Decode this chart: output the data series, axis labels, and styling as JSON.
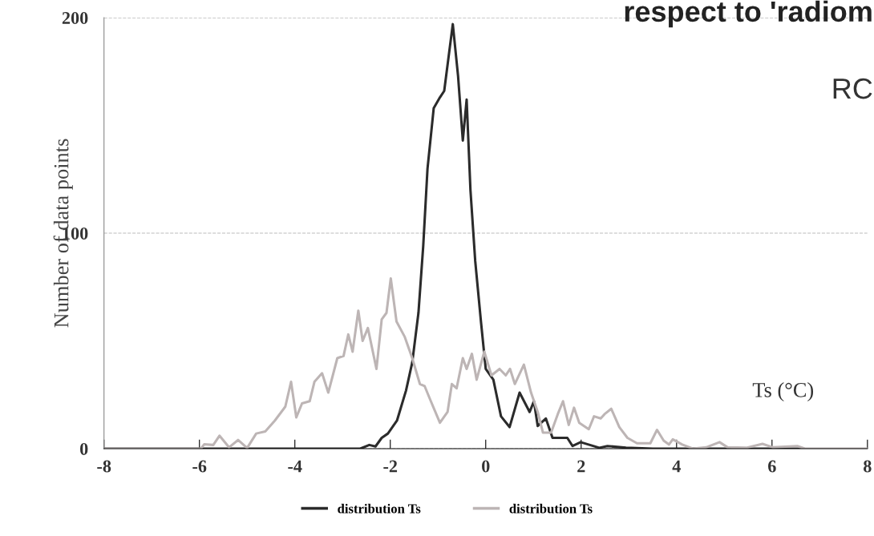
{
  "chart_data": {
    "type": "line",
    "title": "respect to 'radiom",
    "xlabel": "Ts (°C)",
    "ylabel": "Number of data points",
    "annotations": [
      "RC"
    ],
    "xlim": [
      -8,
      8
    ],
    "xticks": [
      -8,
      -6,
      -4,
      -2,
      0,
      2,
      4,
      6,
      8
    ],
    "ylim": [
      0,
      200
    ],
    "yticks": [
      0,
      100,
      200
    ],
    "grid": "y",
    "legend": "bottom",
    "line_style": "solid",
    "marker": "none",
    "series": [
      {
        "name": "distribution Ts",
        "color": "#2b2b2b",
        "x": [
          -8,
          -2.63,
          -2.44,
          -2.31,
          -2.18,
          -2.05,
          -1.86,
          -1.67,
          -1.54,
          -1.41,
          -1.31,
          -1.22,
          -1.09,
          -0.96,
          -0.87,
          -0.69,
          -0.58,
          -0.48,
          -0.4,
          -0.32,
          -0.22,
          -0.1,
          0,
          0.16,
          0.32,
          0.5,
          0.71,
          0.92,
          1.01,
          1.09,
          1.26,
          1.4,
          1.71,
          1.82,
          1.99,
          2.38,
          2.55,
          2.94,
          3.5,
          6.6
        ],
        "values": [
          0,
          0,
          1.7,
          1,
          5,
          7,
          13,
          27,
          40,
          63,
          94,
          130,
          158,
          163,
          166,
          197,
          173,
          143,
          162,
          120,
          87,
          59,
          37,
          32,
          15,
          10,
          26,
          17,
          22,
          10.5,
          14,
          5,
          5,
          1.2,
          3,
          0.4,
          1.2,
          0.4,
          0,
          0
        ]
      },
      {
        "name": "distribution Ts",
        "color": "#bdb5b5",
        "x": [
          -8,
          -6.28,
          -5.97,
          -5.9,
          -5.71,
          -5.58,
          -5.38,
          -5.19,
          -5.0,
          -4.81,
          -4.62,
          -4.42,
          -4.2,
          -4.08,
          -3.97,
          -3.85,
          -3.69,
          -3.59,
          -3.43,
          -3.3,
          -3.11,
          -2.98,
          -2.88,
          -2.79,
          -2.67,
          -2.58,
          -2.47,
          -2.29,
          -2.18,
          -2.08,
          -1.99,
          -1.87,
          -1.7,
          -1.54,
          -1.38,
          -1.28,
          -1.15,
          -0.96,
          -0.8,
          -0.71,
          -0.61,
          -0.48,
          -0.4,
          -0.29,
          -0.19,
          -0.03,
          0.12,
          0.29,
          0.42,
          0.51,
          0.61,
          0.8,
          0.95,
          1.09,
          1.2,
          1.37,
          1.51,
          1.62,
          1.74,
          1.85,
          1.96,
          2.16,
          2.27,
          2.41,
          2.49,
          2.63,
          2.8,
          2.97,
          3.17,
          3.45,
          3.59,
          3.73,
          3.84,
          3.92,
          4.12,
          4.34,
          4.62,
          4.9,
          5.07,
          5.46,
          5.8,
          6.02,
          6.53,
          6.69,
          8.0
        ],
        "values": [
          0,
          0,
          0,
          2,
          1.7,
          6,
          0.6,
          4,
          0.3,
          7,
          8,
          13,
          19.5,
          31,
          14.5,
          21,
          22,
          31,
          35,
          26,
          42,
          43,
          53,
          45,
          64,
          50,
          56,
          37,
          60,
          63,
          79,
          59,
          52,
          42,
          30,
          29,
          22,
          12,
          17,
          30,
          28,
          42,
          37,
          44,
          32,
          45,
          34,
          37,
          34,
          37,
          30,
          39,
          26,
          17,
          7.4,
          7.4,
          16,
          22,
          11,
          19,
          12,
          9,
          15,
          14,
          16,
          18.5,
          10,
          5,
          2.5,
          2.5,
          8.7,
          3.7,
          1.9,
          4.3,
          1.9,
          0,
          0.6,
          3,
          0.6,
          0.4,
          2.2,
          0.6,
          1.2,
          0,
          0
        ]
      }
    ]
  }
}
